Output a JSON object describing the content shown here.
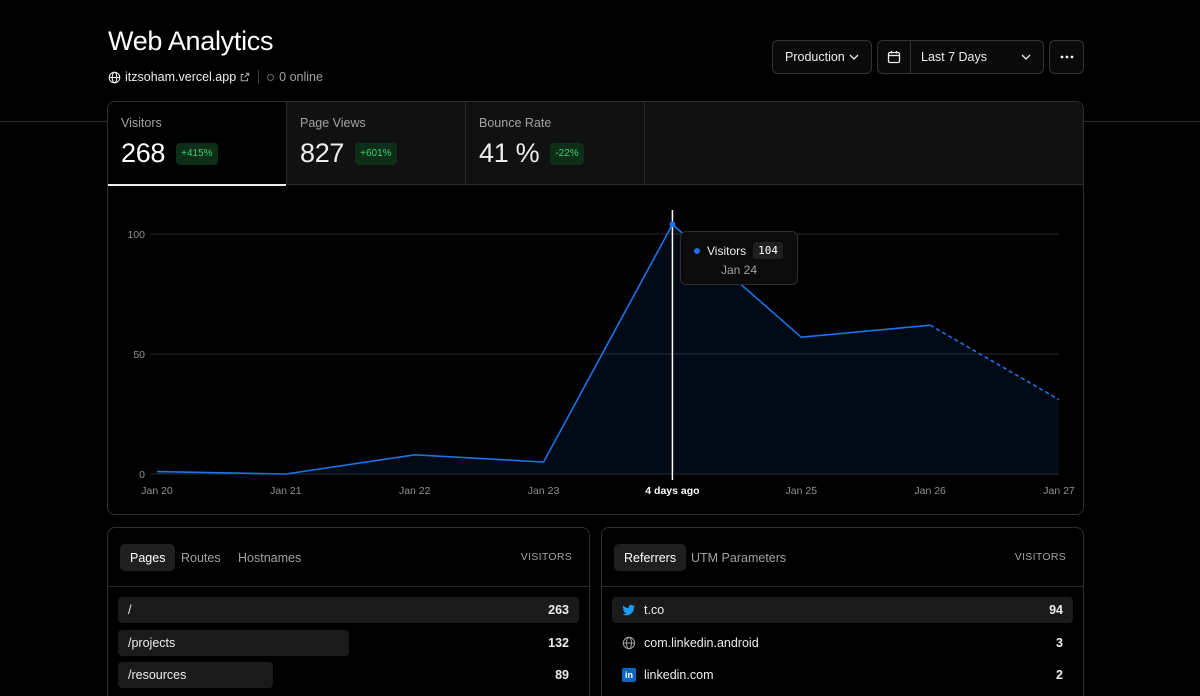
{
  "header": {
    "title": "Web Analytics",
    "domain": "itzsoham.vercel.app",
    "online": "0 online"
  },
  "toolbar": {
    "environment": "Production",
    "range": "Last 7 Days",
    "more_icon": "ellipsis-icon"
  },
  "metrics": [
    {
      "label": "Visitors",
      "value": "268",
      "change": "+415%"
    },
    {
      "label": "Page Views",
      "value": "827",
      "change": "+601%"
    },
    {
      "label": "Bounce Rate",
      "value": "41 %",
      "change": "-22%"
    }
  ],
  "tooltip": {
    "series": "Visitors",
    "value": "104",
    "date": "Jan 24"
  },
  "chart_data": {
    "type": "area",
    "categories": [
      "Jan 20",
      "Jan 21",
      "Jan 22",
      "Jan 23",
      "4 days ago",
      "Jan 25",
      "Jan 26",
      "Jan 27"
    ],
    "hover_index": 4,
    "series": [
      {
        "name": "Visitors",
        "values": [
          1,
          0,
          8,
          5,
          104,
          57,
          62,
          31
        ],
        "color": "#1a73e8",
        "projected_from_index": 6
      }
    ],
    "yticks": [
      0,
      50,
      100
    ],
    "ylim": [
      0,
      100
    ],
    "grid": true
  },
  "pages_panel": {
    "tabs": [
      "Pages",
      "Routes",
      "Hostnames"
    ],
    "column": "VISITORS",
    "rows": [
      {
        "label": "/",
        "value": "263",
        "share": 1.0
      },
      {
        "label": "/projects",
        "value": "132",
        "share": 0.5
      },
      {
        "label": "/resources",
        "value": "89",
        "share": 0.34
      }
    ]
  },
  "referrers_panel": {
    "tabs": [
      "Referrers",
      "UTM Parameters"
    ],
    "column": "VISITORS",
    "rows": [
      {
        "label": "t.co",
        "value": "94",
        "icon": "twitter-icon",
        "share": 1.0
      },
      {
        "label": "com.linkedin.android",
        "value": "3",
        "icon": "globe-icon",
        "share": 0.03
      },
      {
        "label": "linkedin.com",
        "value": "2",
        "icon": "linkedin-icon",
        "share": 0.02
      }
    ]
  }
}
